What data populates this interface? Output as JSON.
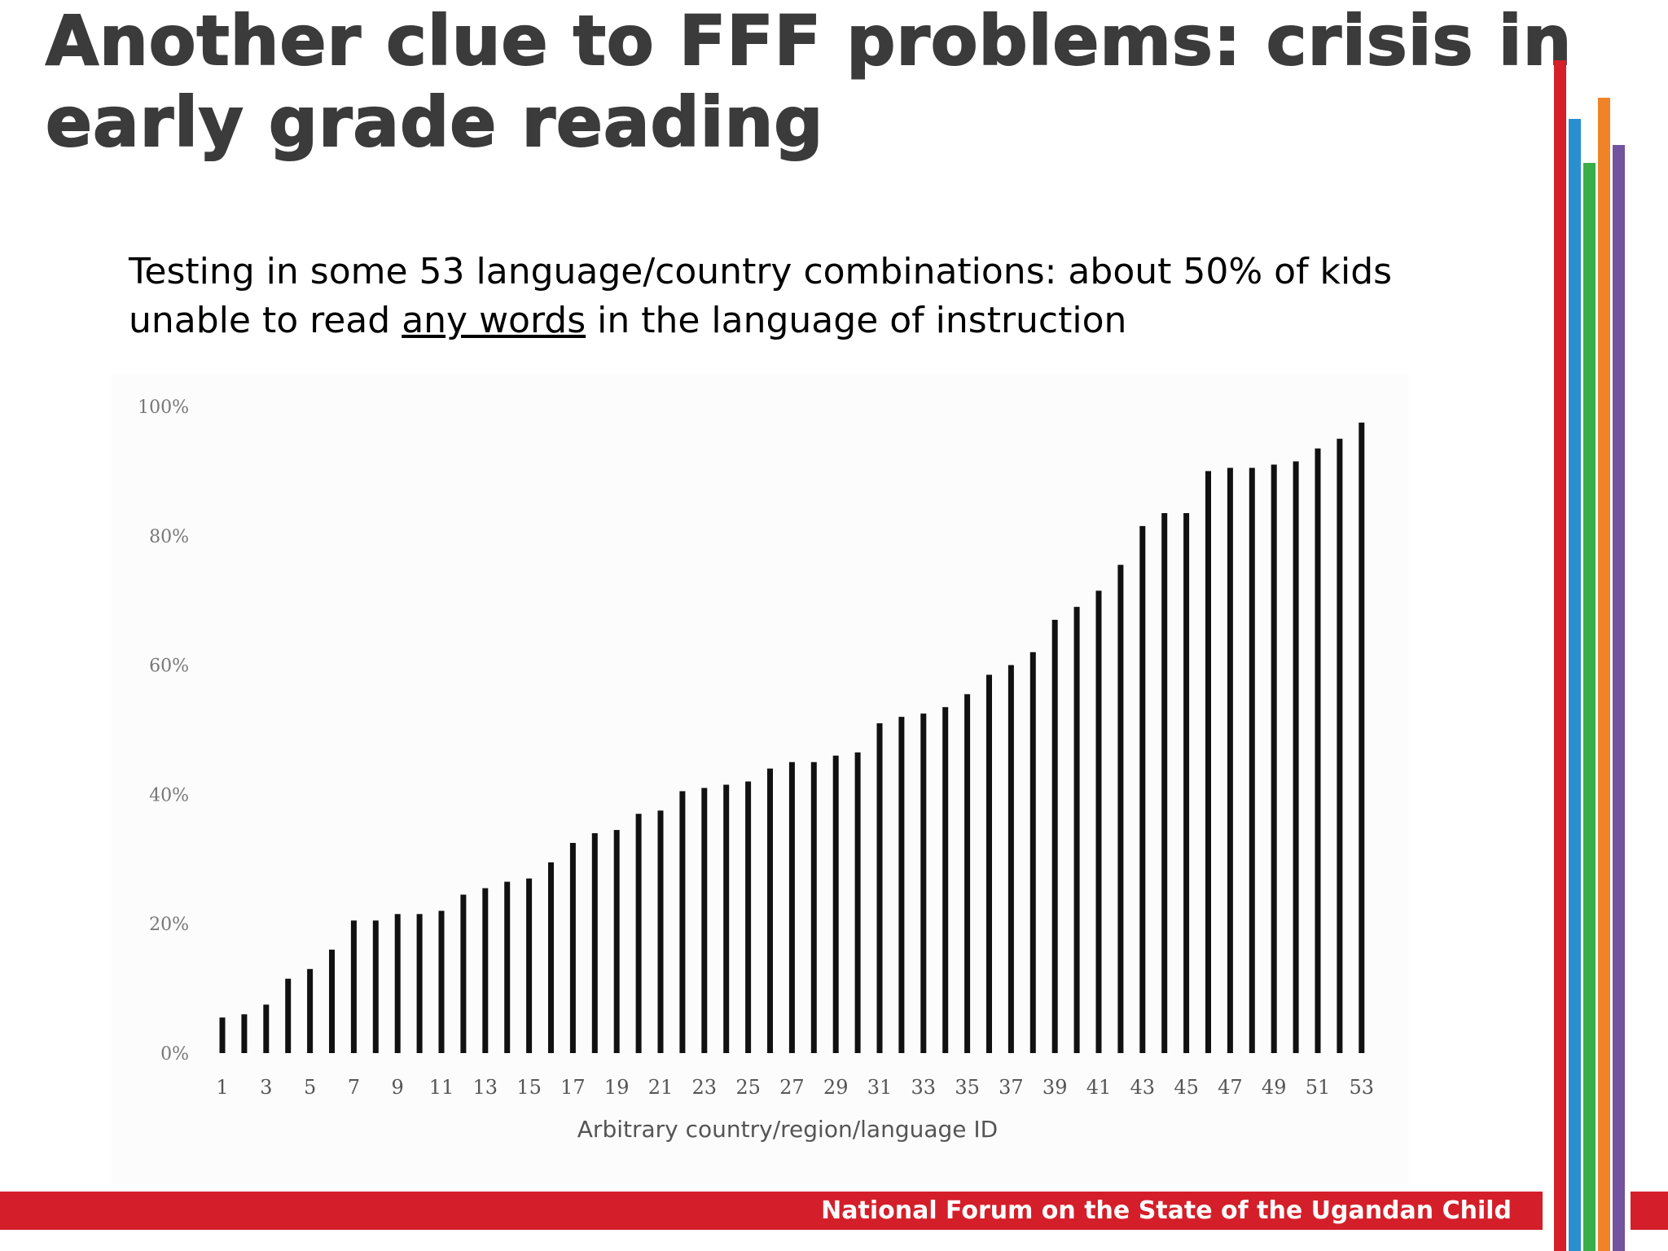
{
  "slide": {
    "title": "Another clue to FFF problems: crisis in early grade reading",
    "subtitle_part1": "Testing in some 53 language/country combinations: about 50% of kids unable to read ",
    "subtitle_underlined": "any words",
    "subtitle_part2": " in the language of instruction",
    "footer_text": "National Forum on the State of the Ugandan Child"
  },
  "colors": {
    "brand_red": "#d41f2a",
    "accent_blue": "#2a8fd0",
    "accent_orange": "#f08327",
    "accent_green": "#3aae49",
    "accent_purple": "#7153a0",
    "bar": "#111111",
    "title_text": "#3b3b3b"
  },
  "chart_data": {
    "type": "bar",
    "title": "",
    "xlabel": "Arbitrary country/region/language ID",
    "ylabel": "",
    "ylim": [
      0,
      100
    ],
    "y_ticks": [
      "0%",
      "20%",
      "40%",
      "60%",
      "80%",
      "100%"
    ],
    "x_tick_labels": [
      "1",
      "3",
      "5",
      "7",
      "9",
      "11",
      "13",
      "15",
      "17",
      "19",
      "21",
      "23",
      "25",
      "27",
      "29",
      "31",
      "33",
      "35",
      "37",
      "39",
      "41",
      "43",
      "45",
      "47",
      "49",
      "51",
      "53"
    ],
    "categories": [
      "1",
      "2",
      "3",
      "4",
      "5",
      "6",
      "7",
      "8",
      "9",
      "10",
      "11",
      "12",
      "13",
      "14",
      "15",
      "16",
      "17",
      "18",
      "19",
      "20",
      "21",
      "22",
      "23",
      "24",
      "25",
      "26",
      "27",
      "28",
      "29",
      "30",
      "31",
      "32",
      "33",
      "34",
      "35",
      "36",
      "37",
      "38",
      "39",
      "40",
      "41",
      "42",
      "43",
      "44",
      "45",
      "46",
      "47",
      "48",
      "49",
      "50",
      "51",
      "52",
      "53"
    ],
    "values": [
      5.5,
      6,
      7.5,
      11.5,
      13,
      16,
      20.5,
      20.5,
      21.5,
      21.5,
      22,
      24.5,
      25.5,
      26.5,
      27,
      29.5,
      32.5,
      34,
      34.5,
      37,
      37.5,
      40.5,
      41,
      41.5,
      42,
      44,
      45,
      45,
      46,
      46.5,
      51,
      52,
      52.5,
      53.5,
      55.5,
      58.5,
      60,
      62,
      67,
      69,
      71.5,
      75.5,
      81.5,
      83.5,
      83.5,
      90,
      90.5,
      90.5,
      91,
      91.5,
      93.5,
      95,
      97.5
    ],
    "grid": false,
    "legend": "none"
  }
}
